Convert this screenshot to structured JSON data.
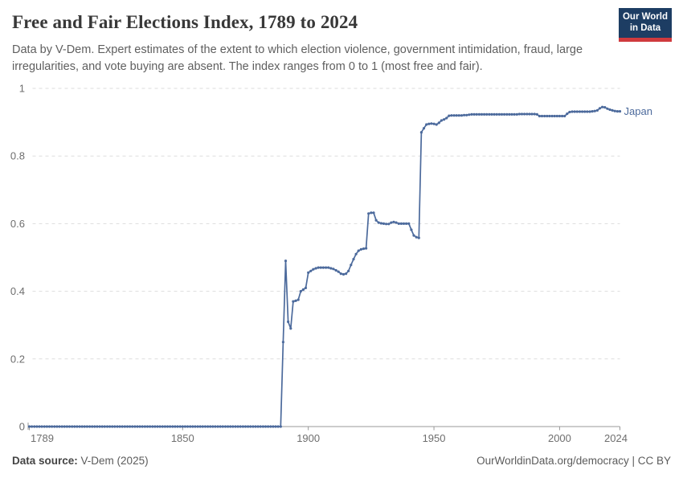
{
  "header": {
    "title": "Free and Fair Elections Index, 1789 to 2024",
    "subtitle": "Data by V-Dem. Expert estimates of the extent to which election violence, government intimidation, fraud, large irregularities, and vote buying are absent. The index ranges from 0 to 1 (most free and fair)."
  },
  "logo": {
    "line1": "Our World",
    "line2": "in Data"
  },
  "chart_data": {
    "type": "line",
    "title": "Free and Fair Elections Index, 1789 to 2024",
    "xlabel": "",
    "ylabel": "",
    "x_range": [
      1789,
      2024
    ],
    "ylim": [
      0,
      1
    ],
    "x_ticks": [
      1789,
      1850,
      1900,
      1950,
      2000,
      2024
    ],
    "y_ticks": [
      0,
      0.2,
      0.4,
      0.6,
      0.8,
      1
    ],
    "grid": "horizontal-dashed",
    "legend_position": "end-of-line-label",
    "marker": "dot-per-year",
    "colors": {
      "line": "#4c6a9c",
      "gridline": "#dddddd",
      "axis": "#999999",
      "tick_text": "#6e6e6e"
    },
    "series": [
      {
        "name": "Japan",
        "color": "#4c6a9c",
        "start_year": 1789,
        "end_year": 2024,
        "values": [
          0,
          0,
          0,
          0,
          0,
          0,
          0,
          0,
          0,
          0,
          0,
          0,
          0,
          0,
          0,
          0,
          0,
          0,
          0,
          0,
          0,
          0,
          0,
          0,
          0,
          0,
          0,
          0,
          0,
          0,
          0,
          0,
          0,
          0,
          0,
          0,
          0,
          0,
          0,
          0,
          0,
          0,
          0,
          0,
          0,
          0,
          0,
          0,
          0,
          0,
          0,
          0,
          0,
          0,
          0,
          0,
          0,
          0,
          0,
          0,
          0,
          0,
          0,
          0,
          0,
          0,
          0,
          0,
          0,
          0,
          0,
          0,
          0,
          0,
          0,
          0,
          0,
          0,
          0,
          0,
          0,
          0,
          0,
          0,
          0,
          0,
          0,
          0,
          0,
          0,
          0,
          0,
          0,
          0,
          0,
          0,
          0,
          0,
          0,
          0,
          0,
          0.25,
          0.49,
          0.31,
          0.29,
          0.37,
          0.372,
          0.375,
          0.4,
          0.405,
          0.41,
          0.455,
          0.46,
          0.465,
          0.468,
          0.47,
          0.47,
          0.47,
          0.47,
          0.47,
          0.468,
          0.466,
          0.462,
          0.458,
          0.452,
          0.45,
          0.452,
          0.46,
          0.478,
          0.495,
          0.51,
          0.52,
          0.524,
          0.526,
          0.527,
          0.63,
          0.632,
          0.632,
          0.61,
          0.603,
          0.601,
          0.6,
          0.599,
          0.599,
          0.603,
          0.605,
          0.603,
          0.6,
          0.6,
          0.6,
          0.6,
          0.6,
          0.582,
          0.565,
          0.56,
          0.558,
          0.87,
          0.882,
          0.893,
          0.895,
          0.896,
          0.895,
          0.893,
          0.898,
          0.905,
          0.908,
          0.912,
          0.919,
          0.92,
          0.92,
          0.92,
          0.92,
          0.92,
          0.921,
          0.921,
          0.922,
          0.923,
          0.923,
          0.923,
          0.923,
          0.923,
          0.923,
          0.923,
          0.923,
          0.923,
          0.923,
          0.923,
          0.923,
          0.923,
          0.923,
          0.923,
          0.923,
          0.923,
          0.923,
          0.923,
          0.924,
          0.924,
          0.924,
          0.924,
          0.924,
          0.924,
          0.924,
          0.923,
          0.918,
          0.918,
          0.918,
          0.918,
          0.918,
          0.918,
          0.918,
          0.918,
          0.918,
          0.918,
          0.918,
          0.925,
          0.93,
          0.931,
          0.931,
          0.931,
          0.931,
          0.931,
          0.931,
          0.931,
          0.931,
          0.932,
          0.933,
          0.935,
          0.941,
          0.945,
          0.944,
          0.94,
          0.937,
          0.935,
          0.933,
          0.932,
          0.932
        ]
      }
    ]
  },
  "footer": {
    "data_source_label": "Data source:",
    "data_source_value": "V-Dem (2025)",
    "attribution": "OurWorldinData.org/democracy | CC BY"
  }
}
